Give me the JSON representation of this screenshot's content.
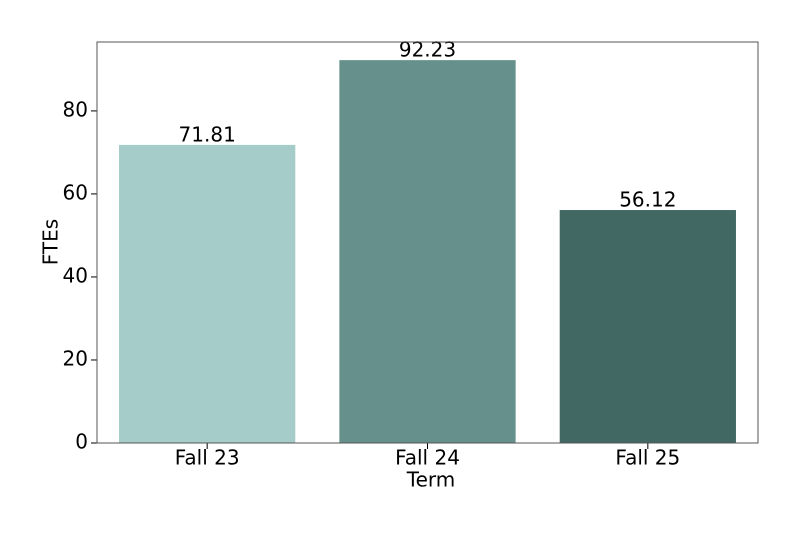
{
  "chart_data": {
    "type": "bar",
    "x_label": "Term",
    "y_label": "FTEs",
    "categories": [
      "Fall 23",
      "Fall 24",
      "Fall 25"
    ],
    "values": [
      71.81,
      92.23,
      56.12
    ],
    "colors": [
      "#a5ccc8",
      "#66908c",
      "#426864"
    ],
    "ylim": [
      0,
      96.6
    ],
    "yticks": [
      0,
      20,
      40,
      60,
      80
    ]
  }
}
